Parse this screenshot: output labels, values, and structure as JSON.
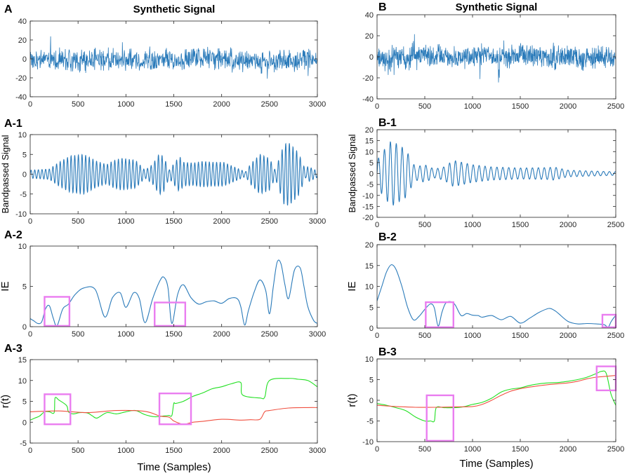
{
  "colors": {
    "blue": "#2b7bba",
    "green": "#22e022",
    "red": "#f05040",
    "box": "#ea7df0",
    "axis": "#262626"
  },
  "chart_data": [
    {
      "id": "A",
      "label": "A",
      "title": "Synthetic Signal",
      "type": "line",
      "xlim": [
        0,
        3000
      ],
      "ylim": [
        -40,
        40
      ],
      "xticks": [
        "0",
        "500",
        "1000",
        "1500",
        "2000",
        "2500",
        "3000"
      ],
      "yticks": [
        "40",
        "20",
        "0",
        "-20",
        "-40"
      ],
      "ylabel": "",
      "xlabel": "",
      "series": [
        {
          "name": "signal",
          "color": "blue",
          "noise": true,
          "amp": 9,
          "seed": 3
        }
      ],
      "boxes": []
    },
    {
      "id": "A1",
      "label": "A-1",
      "title": "",
      "type": "line",
      "xlim": [
        0,
        3000
      ],
      "ylim": [
        -10,
        10
      ],
      "xticks": [
        "0",
        "500",
        "1000",
        "1500",
        "2000",
        "2500",
        "3000"
      ],
      "yticks": [
        "10",
        "5",
        "0",
        "-5",
        "-10"
      ],
      "ylabel": "Bandpassed Signal",
      "xlabel": "",
      "series": [
        {
          "name": "bandpassed",
          "color": "blue",
          "period": 38,
          "env_x": [
            0,
            200,
            300,
            420,
            560,
            700,
            800,
            860,
            950,
            1100,
            1200,
            1280,
            1350,
            1400,
            1450,
            1560,
            1600,
            1700,
            1800,
            1900,
            2020,
            2250,
            2300,
            2400,
            2500,
            2560,
            2650,
            2700,
            2800,
            2880,
            2900,
            3000
          ],
          "env_y": [
            1,
            1.3,
            3,
            4.6,
            5,
            3.2,
            2.4,
            3.3,
            4,
            3.5,
            1,
            2.5,
            5.2,
            4.2,
            1,
            4.5,
            3,
            2.8,
            3.2,
            3,
            3,
            0.6,
            2.5,
            5,
            4,
            1,
            7.5,
            8,
            5.5,
            0.8,
            2,
            0.8
          ]
        }
      ],
      "boxes": []
    },
    {
      "id": "A2",
      "label": "A-2",
      "title": "",
      "type": "line",
      "xlim": [
        0,
        3000
      ],
      "ylim": [
        0,
        10
      ],
      "xticks": [
        "0",
        "500",
        "1000",
        "1500",
        "2000",
        "2500",
        "3000"
      ],
      "yticks": [
        "10",
        "5",
        "0"
      ],
      "ylabel": "IE",
      "xlabel": "",
      "series": [
        {
          "name": "IE",
          "color": "blue",
          "x": [
            0,
            40,
            80,
            120,
            160,
            200,
            240,
            280,
            340,
            400,
            470,
            560,
            680,
            780,
            860,
            940,
            1000,
            1080,
            1140,
            1200,
            1280,
            1360,
            1400,
            1440,
            1480,
            1540,
            1600,
            1680,
            1760,
            1840,
            1920,
            2000,
            2080,
            2160,
            2200,
            2240,
            2280,
            2340,
            2400,
            2460,
            2500,
            2540,
            2580,
            2620,
            2660,
            2700,
            2760,
            2820,
            2860,
            2900,
            2960,
            3000
          ],
          "y": [
            1,
            0.7,
            0.4,
            0.6,
            2.2,
            2.6,
            1.1,
            0.1,
            2.2,
            2.8,
            4,
            4.8,
            4.6,
            1.2,
            3.6,
            4.2,
            2.4,
            4.2,
            3.5,
            0.5,
            3.5,
            5.8,
            6.1,
            4.8,
            0.4,
            4,
            5.2,
            3.6,
            2.8,
            3.1,
            3.2,
            2.9,
            3.5,
            3.5,
            2.5,
            0.2,
            2,
            4.3,
            5.8,
            4.5,
            1.6,
            5,
            8,
            7.8,
            5.3,
            3.5,
            7,
            7.3,
            5,
            2.5,
            0.8,
            0.4
          ]
        }
      ],
      "boxes": [
        [
          150,
          410,
          0.1,
          3.7
        ],
        [
          1300,
          1620,
          0.1,
          3.0
        ]
      ]
    },
    {
      "id": "A3",
      "label": "A-3",
      "title": "",
      "type": "line",
      "xlim": [
        0,
        3000
      ],
      "ylim": [
        -5,
        15
      ],
      "xticks": [
        "0",
        "500",
        "1000",
        "1500",
        "2000",
        "2500",
        "3000"
      ],
      "yticks": [
        "15",
        "10",
        "5",
        "0",
        "-5"
      ],
      "ylabel": "r(t)",
      "xlabel": "Time (Samples)",
      "series": [
        {
          "name": "green",
          "color": "green",
          "x": [
            0,
            50,
            100,
            150,
            200,
            250,
            260,
            300,
            380,
            400,
            450,
            520,
            600,
            650,
            700,
            800,
            900,
            1000,
            1100,
            1200,
            1300,
            1400,
            1450,
            1480,
            1500,
            1520,
            1600,
            1700,
            1800,
            1900,
            2000,
            2100,
            2200,
            2220,
            2400,
            2450,
            2500,
            2700,
            2800,
            2900,
            3000
          ],
          "y": [
            0.5,
            1,
            1.5,
            2.5,
            2.5,
            2.3,
            5.8,
            5.3,
            4,
            2.5,
            2,
            2.3,
            2.2,
            1.5,
            1,
            2.3,
            2,
            2.5,
            2.8,
            1.8,
            1.3,
            1.5,
            1.6,
            1.6,
            4.5,
            4.5,
            5,
            6.2,
            7,
            8,
            8.5,
            9.2,
            9.5,
            6.5,
            5.8,
            6,
            10,
            10.5,
            10.3,
            10,
            8.5
          ]
        },
        {
          "name": "red",
          "color": "red",
          "x": [
            0,
            300,
            600,
            900,
            1200,
            1350,
            1450,
            1500,
            1600,
            1700,
            1800,
            2000,
            2200,
            2300,
            2400,
            2450,
            2500,
            2700,
            2900,
            3000
          ],
          "y": [
            2.5,
            2.7,
            2.3,
            2.8,
            2.6,
            1.5,
            1.2,
            0.3,
            -0.5,
            0,
            0.2,
            0.7,
            0.5,
            0.6,
            0.7,
            2.5,
            2.8,
            3.4,
            3.5,
            3.5
          ]
        }
      ],
      "boxes": [
        [
          150,
          420,
          -0.5,
          6.7
        ],
        [
          1350,
          1680,
          -0.5,
          6.9
        ]
      ]
    },
    {
      "id": "B",
      "label": "B",
      "title": "Synthetic Signal",
      "type": "line",
      "xlim": [
        0,
        2500
      ],
      "ylim": [
        -40,
        40
      ],
      "xticks": [
        "0",
        "500",
        "1000",
        "1500",
        "2000",
        "2500"
      ],
      "yticks": [
        "40",
        "20",
        "0",
        "-20",
        "-40"
      ],
      "ylabel": "",
      "xlabel": "",
      "series": [
        {
          "name": "signal",
          "color": "blue",
          "noise": true,
          "amp": 8,
          "seed": 11
        }
      ],
      "boxes": []
    },
    {
      "id": "B1",
      "label": "B-1",
      "title": "",
      "type": "line",
      "xlim": [
        0,
        2500
      ],
      "ylim": [
        -20,
        20
      ],
      "xticks": [
        "0",
        "500",
        "1000",
        "1500",
        "2000",
        "2500"
      ],
      "yticks": [
        "20",
        "15",
        "10",
        "5",
        "0",
        "-5",
        "-10",
        "-15",
        "-20"
      ],
      "ylabel": "Bandpassed Signal",
      "xlabel": "",
      "series": [
        {
          "name": "bandpassed",
          "color": "blue",
          "period": 62,
          "env_x": [
            0,
            60,
            150,
            300,
            400,
            500,
            600,
            700,
            800,
            1000,
            1200,
            1500,
            1800,
            1850,
            2000,
            2200,
            2500
          ],
          "env_y": [
            6,
            10,
            15,
            11,
            3,
            4,
            2,
            3,
            6,
            4,
            3,
            2.5,
            2.7,
            3,
            1.5,
            1.2,
            0.8
          ]
        }
      ],
      "boxes": []
    },
    {
      "id": "B2",
      "label": "B-2",
      "title": "",
      "type": "line",
      "xlim": [
        0,
        2500
      ],
      "ylim": [
        0,
        20
      ],
      "xticks": [
        "0",
        "500",
        "1000",
        "1500",
        "2000",
        "2500"
      ],
      "yticks": [
        "20",
        "15",
        "10",
        "5",
        "0"
      ],
      "ylabel": "IE",
      "xlabel": "",
      "series": [
        {
          "name": "IE",
          "color": "blue",
          "x": [
            0,
            50,
            100,
            150,
            200,
            260,
            320,
            380,
            440,
            500,
            560,
            600,
            640,
            680,
            720,
            780,
            820,
            880,
            940,
            1000,
            1060,
            1100,
            1200,
            1300,
            1400,
            1500,
            1600,
            1700,
            1800,
            1860,
            1900,
            2000,
            2100,
            2200,
            2300,
            2380,
            2420,
            2450,
            2480,
            2500
          ],
          "y": [
            6.5,
            10,
            13.5,
            15.2,
            14,
            10,
            5,
            2,
            2.8,
            4.5,
            5.8,
            4.8,
            0.5,
            3.8,
            6,
            6.3,
            5.5,
            3,
            3.5,
            3.1,
            3,
            2.6,
            3,
            2,
            2.8,
            1.2,
            2.4,
            3.8,
            4.7,
            4.2,
            3.5,
            1.6,
            1,
            1.1,
            1,
            0.8,
            0.2,
            1.5,
            2.5,
            3
          ]
        }
      ],
      "boxes": [
        [
          510,
          800,
          0.2,
          6.2
        ],
        [
          2360,
          2500,
          0.2,
          3.2
        ]
      ]
    },
    {
      "id": "B3",
      "label": "B-3",
      "title": "",
      "type": "line",
      "xlim": [
        0,
        2500
      ],
      "ylim": [
        -10,
        10
      ],
      "xticks": [
        "0",
        "500",
        "1000",
        "1500",
        "2000",
        "2500"
      ],
      "yticks": [
        "10",
        "5",
        "0",
        "-5",
        "-10"
      ],
      "ylabel": "r(t)",
      "xlabel": "Time (Samples)",
      "series": [
        {
          "name": "green",
          "color": "green",
          "x": [
            0,
            100,
            200,
            300,
            400,
            500,
            560,
            600,
            620,
            700,
            800,
            900,
            1000,
            1100,
            1200,
            1300,
            1400,
            1500,
            1600,
            1700,
            1800,
            1900,
            2000,
            2100,
            2200,
            2300,
            2350,
            2400,
            2450,
            2500
          ],
          "y": [
            -0.8,
            -1.2,
            -1.8,
            -2.5,
            -4,
            -5,
            -5,
            -5,
            -1.8,
            -1.8,
            -1.8,
            -1.6,
            -1,
            -0.5,
            0.5,
            2,
            2.7,
            3,
            3.6,
            4,
            4.2,
            4.3,
            4.6,
            5,
            5.6,
            6.5,
            7,
            6.5,
            1.5,
            -1.2
          ]
        },
        {
          "name": "red",
          "color": "red",
          "x": [
            0,
            200,
            400,
            600,
            800,
            1000,
            1100,
            1200,
            1300,
            1400,
            1500,
            1600,
            1800,
            2000,
            2100,
            2200,
            2300,
            2400,
            2500
          ],
          "y": [
            -1.2,
            -1.5,
            -1.7,
            -1.7,
            -1.6,
            -1.5,
            -1,
            0,
            1.2,
            2.2,
            2.8,
            3.2,
            3.8,
            4.2,
            4.6,
            5.2,
            5.6,
            5.8,
            6
          ]
        }
      ],
      "boxes": [
        [
          520,
          800,
          -9.8,
          1.2
        ],
        [
          2300,
          2500,
          2.4,
          8.2
        ]
      ]
    }
  ]
}
